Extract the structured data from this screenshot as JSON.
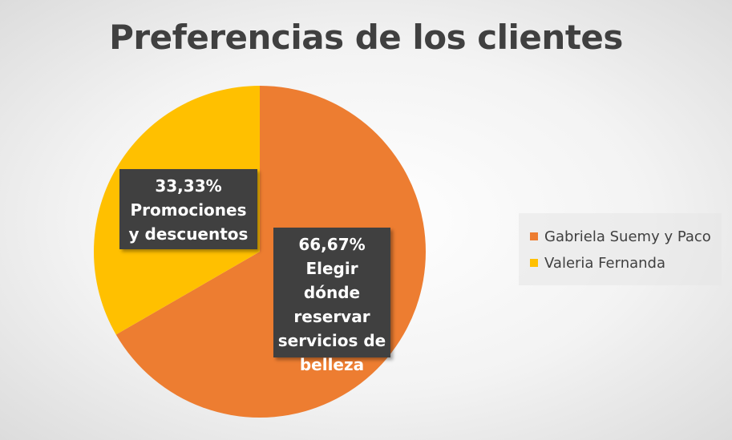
{
  "chart_data": {
    "type": "pie",
    "title": "Preferencias de los clientes",
    "slices": [
      {
        "legend": "Gabriela Suemy y Paco",
        "value": 66.67,
        "percent_label": "66,67%",
        "category": "Elegir dónde reservar servicios de belleza",
        "color": "#ed7d31"
      },
      {
        "legend": "Valeria Fernanda",
        "value": 33.33,
        "percent_label": "33,33%",
        "category": "Promociones y descuentos",
        "color": "#ffc000"
      }
    ],
    "legend_position": "right"
  }
}
